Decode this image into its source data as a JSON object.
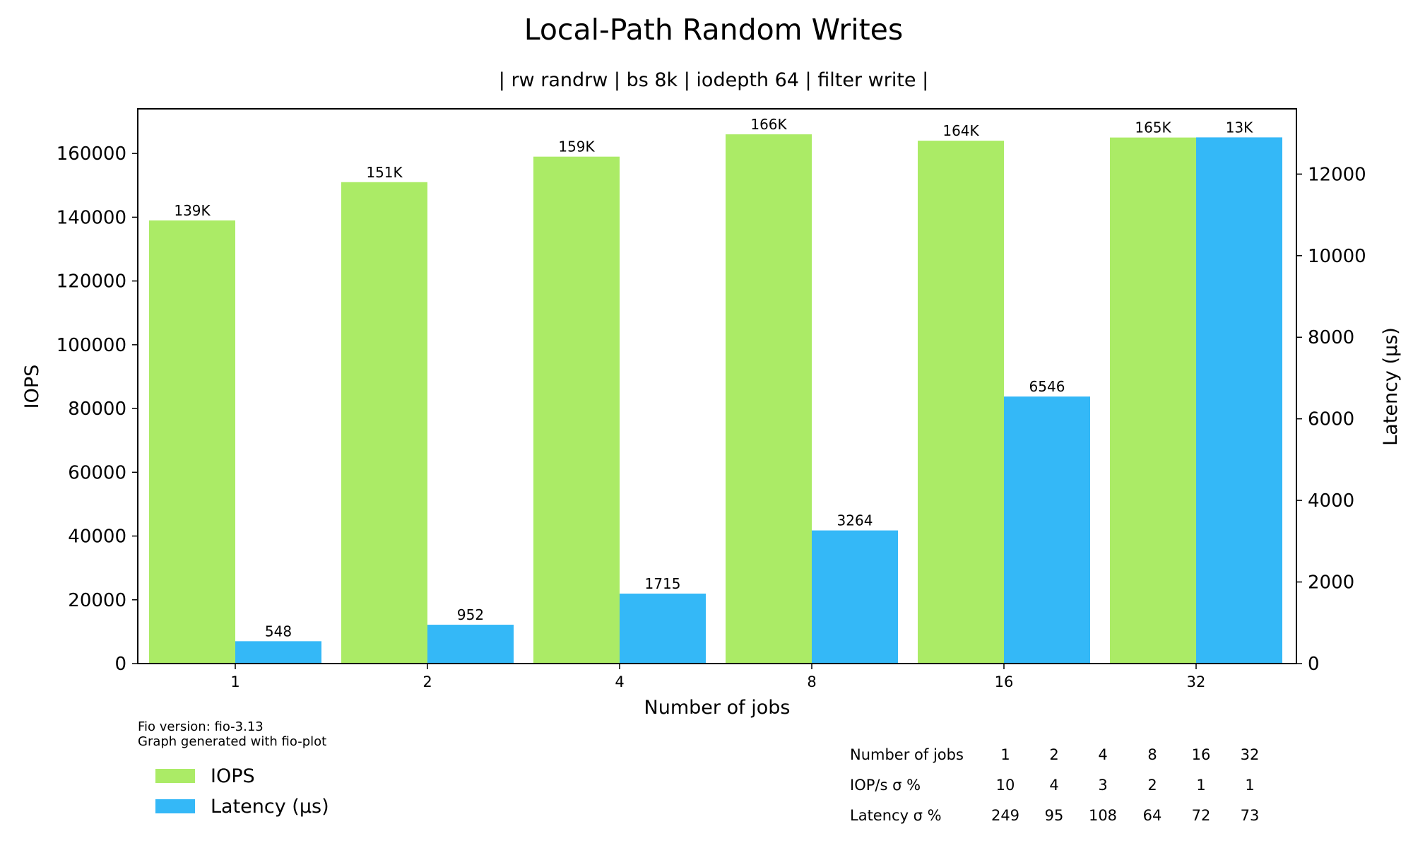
{
  "chart_data": {
    "type": "bar",
    "title": "Local-Path Random Writes",
    "subtitle": "| rw randrw | bs 8k | iodepth 64 | filter write |",
    "xlabel": "Number of jobs",
    "ylabel": "IOPS",
    "y2label": "Latency (µs)",
    "categories": [
      "1",
      "2",
      "4",
      "8",
      "16",
      "32"
    ],
    "ylim": [
      0,
      174000
    ],
    "y2lim": [
      0,
      13600
    ],
    "yticks": [
      "0",
      "20000",
      "40000",
      "60000",
      "80000",
      "100000",
      "120000",
      "140000",
      "160000"
    ],
    "y2ticks": [
      "0",
      "2000",
      "4000",
      "6000",
      "8000",
      "10000",
      "12000"
    ],
    "grid": false,
    "legend_position": "bottom-left",
    "series": [
      {
        "name": "IOPS",
        "axis": "left",
        "color": "#abeb66",
        "values": [
          139000,
          151000,
          159000,
          166000,
          164000,
          165000
        ],
        "labels": [
          "139K",
          "151K",
          "159K",
          "166K",
          "164K",
          "165K"
        ]
      },
      {
        "name": "Latency (µs)",
        "axis": "right",
        "color": "#34b8f7",
        "values": [
          548,
          952,
          1715,
          3264,
          6546,
          12900
        ],
        "labels": [
          "548",
          "952",
          "1715",
          "3264",
          "6546",
          "13K"
        ]
      }
    ],
    "footnote": [
      "Fio version: fio-3.13",
      "Graph generated with fio-plot"
    ],
    "stats_table": {
      "rows": [
        [
          "Number of jobs",
          "1",
          "2",
          "4",
          "8",
          "16",
          "32"
        ],
        [
          "IOP/s σ %",
          "10",
          "4",
          "3",
          "2",
          "1",
          "1"
        ],
        [
          "Latency σ %",
          "249",
          "95",
          "108",
          "64",
          "72",
          "73"
        ]
      ]
    }
  }
}
